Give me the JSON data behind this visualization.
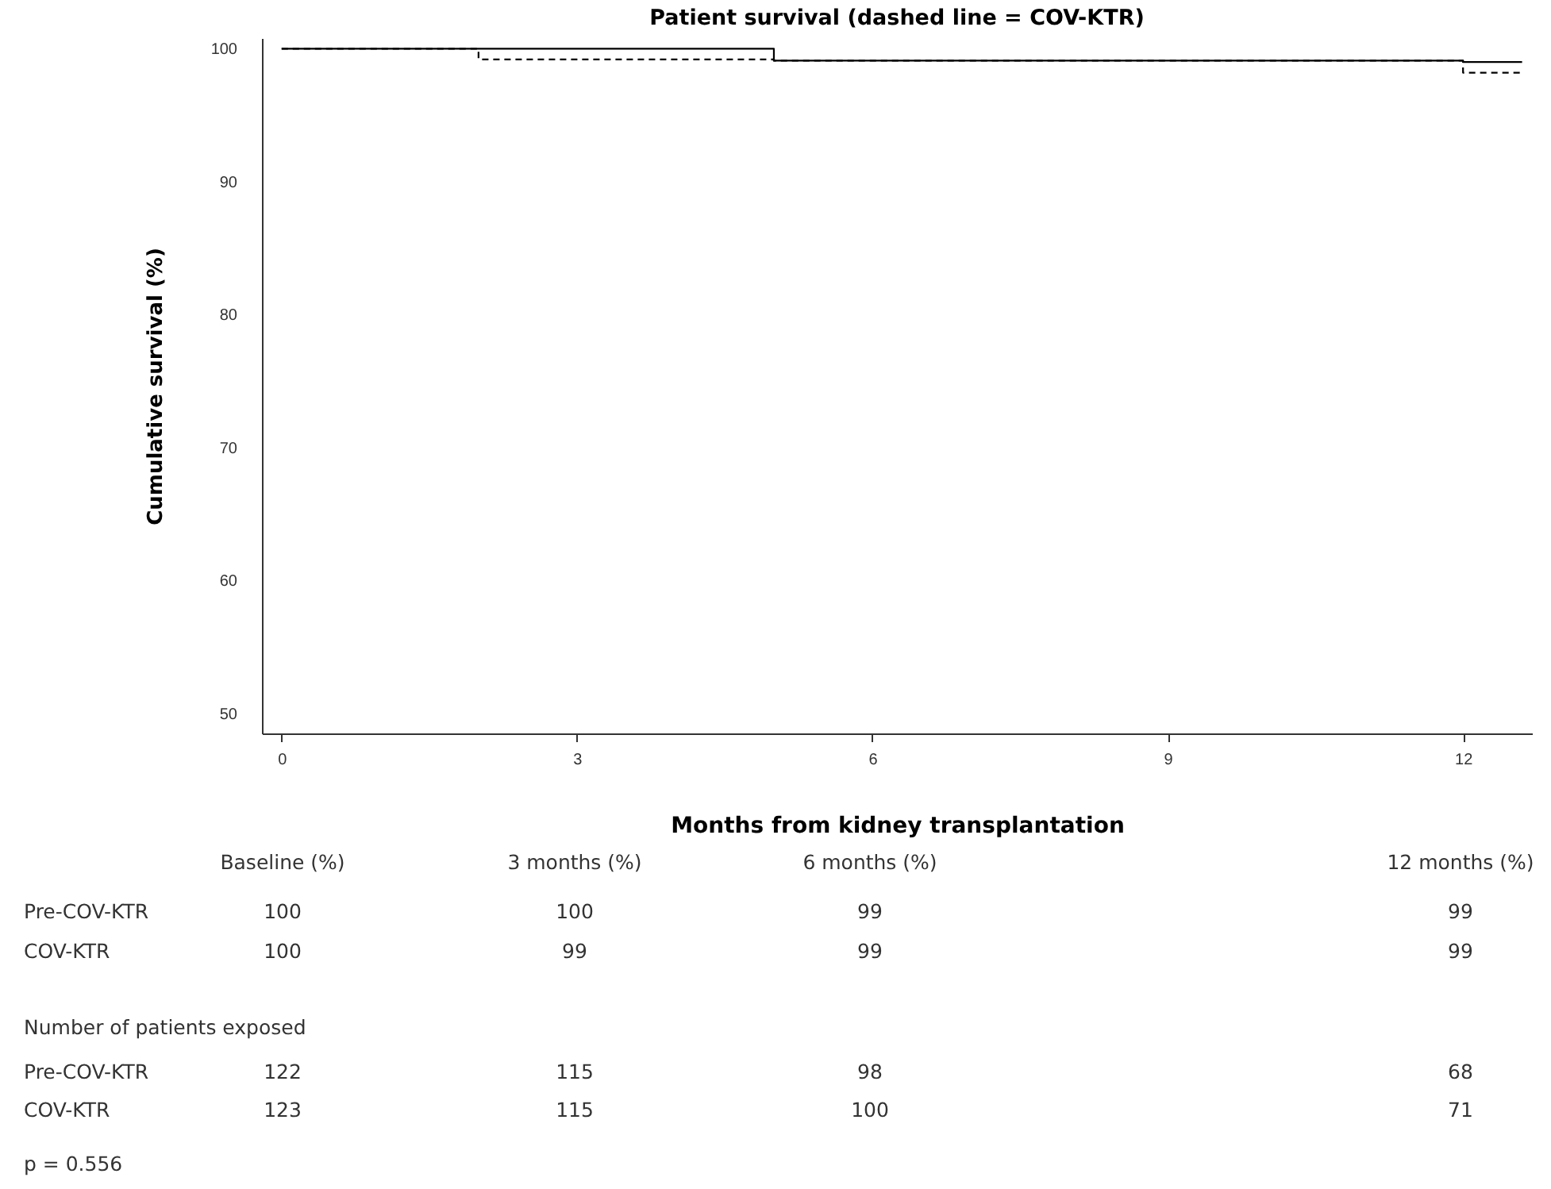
{
  "chart_data": {
    "type": "step",
    "title": "Patient survival (dashed line = COV-KTR)",
    "xlabel": "Months from kidney transplantation",
    "ylabel": "Cumulative survival (%)",
    "xlim": [
      -0.2,
      12.7
    ],
    "xticks": [
      0,
      3,
      6,
      9,
      12
    ],
    "ylim": [
      48.5,
      100.8
    ],
    "yticks": [
      50,
      60,
      70,
      80,
      90,
      100
    ],
    "grid": false,
    "legend": false,
    "series": [
      {
        "color": "#000000",
        "line_style": "solid",
        "x": [
          0,
          5,
          12,
          12.6
        ],
        "values": [
          100,
          99.1,
          99.0,
          99.0
        ]
      },
      {
        "color": "#000000",
        "line_style": "dashed",
        "x": [
          0,
          2,
          5,
          12,
          12.6
        ],
        "values": [
          100,
          99.2,
          99.1,
          98.2,
          98.2
        ]
      }
    ],
    "annotations": [
      "Baseline (%)",
      "3 months (%)",
      "6 months (%)",
      "12 months (%)",
      "Pre-COV-KTR",
      "100",
      "100",
      "99",
      "99",
      "COV-KTR",
      "100",
      "99",
      "99",
      "99",
      "Number of patients exposed",
      "Pre-COV-KTR",
      "122",
      "115",
      "98",
      "68",
      "COV-KTR",
      "123",
      "115",
      "100",
      "71",
      "p = 0.556"
    ]
  }
}
